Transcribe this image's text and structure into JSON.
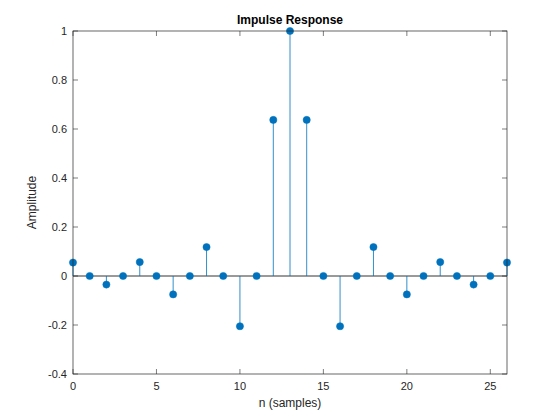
{
  "chart_data": {
    "type": "stem",
    "title": "Impulse Response",
    "x_label": "n (samples)",
    "y_label": "Amplitude",
    "x": [
      0,
      1,
      2,
      3,
      4,
      5,
      6,
      7,
      8,
      9,
      10,
      11,
      12,
      13,
      14,
      15,
      16,
      17,
      18,
      19,
      20,
      21,
      22,
      23,
      24,
      25,
      26
    ],
    "values": [
      0.055,
      0,
      -0.035,
      0,
      0.057,
      0,
      -0.075,
      0,
      0.118,
      0,
      -0.205,
      0,
      0.637,
      1,
      0.637,
      0,
      -0.205,
      0,
      0.118,
      0,
      -0.075,
      0,
      0.057,
      0,
      -0.035,
      0,
      0.055
    ],
    "color": "#0072bd",
    "marker": "circle",
    "xlim": [
      0,
      26
    ],
    "xticks": [
      0,
      5,
      10,
      15,
      20,
      25
    ],
    "ylim": [
      -0.4,
      1
    ],
    "yticks": [
      -0.4,
      -0.2,
      0,
      0.2,
      0.4,
      0.6,
      0.8,
      1
    ],
    "grid": false
  }
}
